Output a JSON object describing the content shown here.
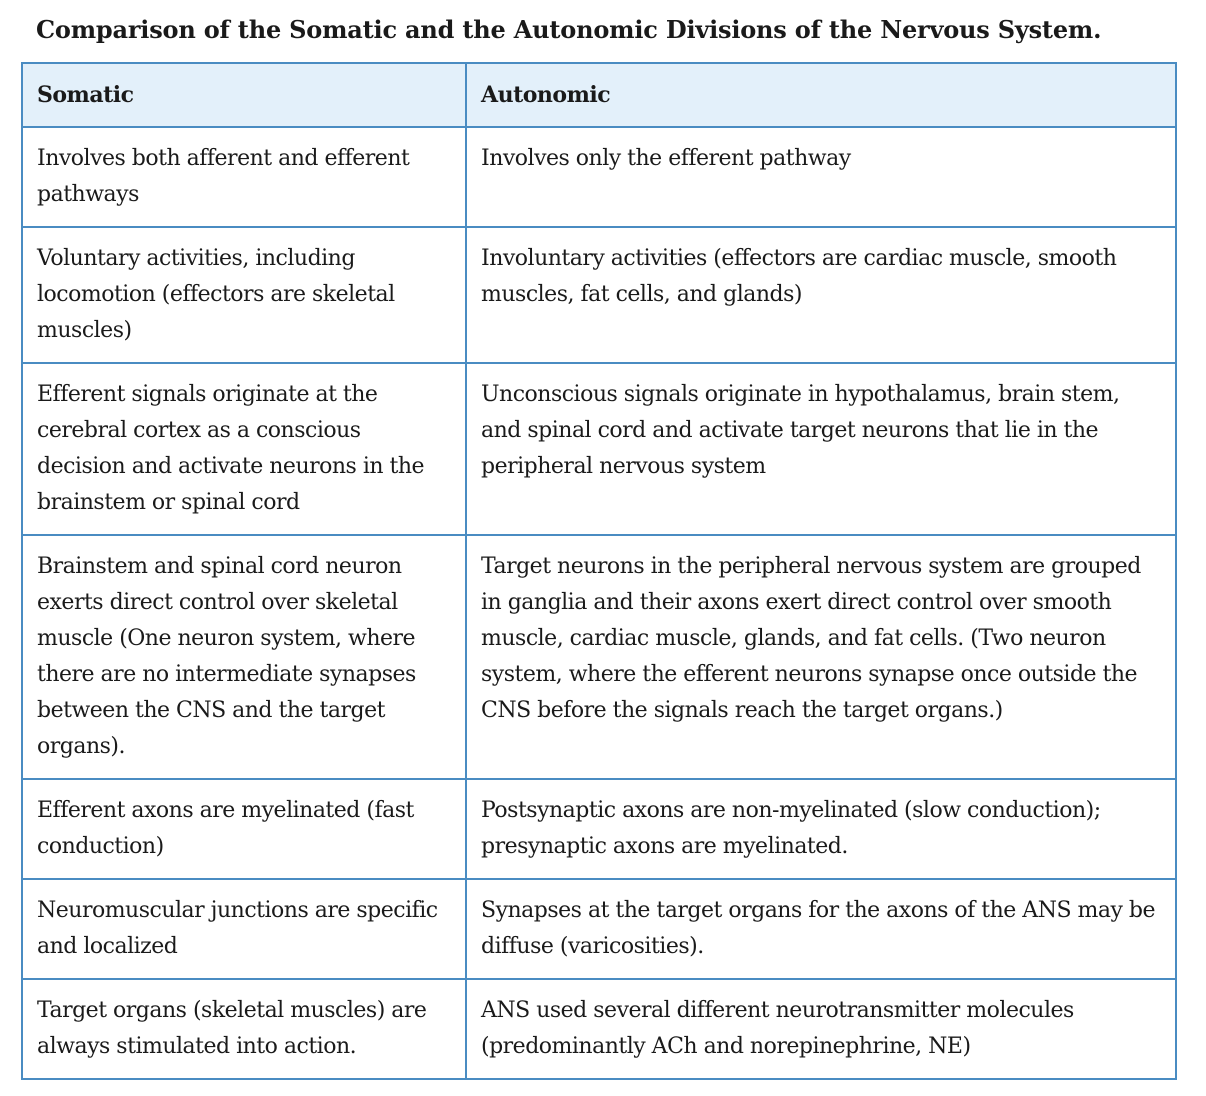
{
  "caption": "Comparison of the Somatic and the Autonomic Divisions of the Nervous System.",
  "table": {
    "headers": [
      "Somatic",
      "Autonomic"
    ],
    "rows": [
      [
        "Involves both afferent and efferent pathways",
        "Involves only the efferent pathway"
      ],
      [
        "Voluntary activities, including locomotion (effectors are skeletal muscles)",
        "Involuntary activities (effectors are cardiac muscle, smooth muscles, fat cells, and glands)"
      ],
      [
        "Efferent signals originate at the cerebral cortex as a conscious decision and activate neurons in the brainstem or spinal cord",
        "Unconscious signals originate in hypothalamus, brain stem, and spinal cord and activate target neurons that lie in the peripheral nervous system"
      ],
      [
        "Brainstem and spinal cord neuron exerts direct control over skeletal muscle (One neuron system, where there are no intermediate synapses between the CNS and the target organs).",
        "Target neurons in the peripheral nervous system are grouped in ganglia and their axons exert direct control over smooth muscle, cardiac muscle, glands, and fat cells. (Two neuron system, where the efferent neurons synapse once outside the CNS before the signals reach the target organs.)"
      ],
      [
        "Efferent axons are myelinated (fast conduction)",
        "Postsynaptic axons are non-myelinated (slow conduction); presynaptic axons are myelinated."
      ],
      [
        "Neuromuscular junctions are specific and localized",
        "Synapses at the target organs for the axons of the ANS may be diffuse (varicosities)."
      ],
      [
        "Target organs (skeletal muscles) are always stimulated into action.",
        "ANS used several different neurotransmitter molecules (predominantly ACh and norepinephrine, NE)"
      ]
    ]
  },
  "colors": {
    "border": "#4a8cc2",
    "header_background": "#e3f0fa",
    "text": "#1a1a1a"
  }
}
